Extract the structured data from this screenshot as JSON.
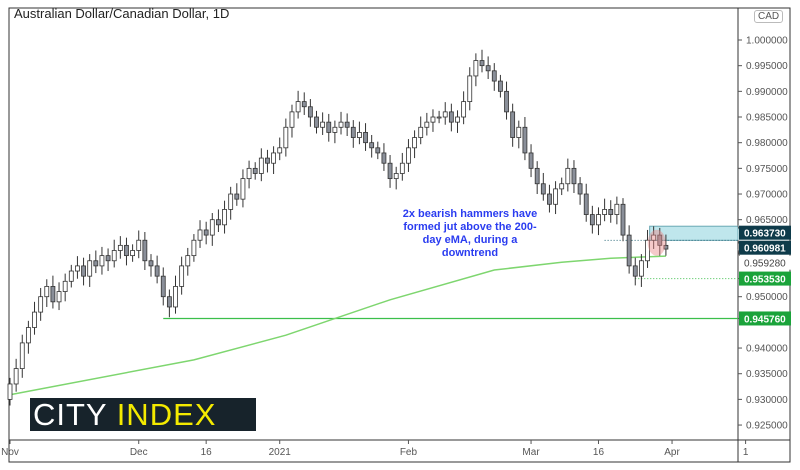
{
  "title": "Australian Dollar/Canadian Dollar, 1D",
  "currency_badge": "CAD",
  "annotation": "2x bearish hammers have formed jut above the 200-day eMA, during a downtrend",
  "logo": {
    "part1": "CITY",
    "part2": "INDEX"
  },
  "colors": {
    "up": "#ffffff",
    "down": "#8a8f99",
    "wick": "#333333",
    "ema": "#7ed66f",
    "support": "#3bbf4a",
    "zone": "#bfe6ec",
    "dark_label": "#0e3b4a",
    "green_label": "#1aa33a",
    "annotation": "#2a3cf0",
    "highlight": "#e88a8a"
  },
  "chart_data": {
    "type": "candlestick",
    "title": "Australian Dollar/Canadian Dollar, 1D",
    "ylim": [
      0.922,
      1.006
    ],
    "y_ticks": [
      "1.000000",
      "0.995000",
      "0.990000",
      "0.985000",
      "0.980000",
      "0.975000",
      "0.970000",
      "0.965000",
      "0.950000",
      "0.940000",
      "0.935000",
      "0.930000",
      "0.925000"
    ],
    "x_ticks": [
      {
        "label": "Nov",
        "index": 0
      },
      {
        "label": "Dec",
        "index": 21
      },
      {
        "label": "16",
        "index": 32
      },
      {
        "label": "2021",
        "index": 44
      },
      {
        "label": "Feb",
        "index": 65
      },
      {
        "label": "Mar",
        "index": 85
      },
      {
        "label": "16",
        "index": 96
      },
      {
        "label": "Apr",
        "index": 108
      },
      {
        "label": "1",
        "index": 120
      }
    ],
    "first_date": "2020-11-02",
    "close": [
      0.933,
      0.936,
      0.941,
      0.944,
      0.947,
      0.95,
      0.952,
      0.949,
      0.951,
      0.953,
      0.955,
      0.956,
      0.954,
      0.957,
      0.956,
      0.958,
      0.957,
      0.959,
      0.96,
      0.958,
      0.959,
      0.961,
      0.957,
      0.956,
      0.954,
      0.95,
      0.948,
      0.952,
      0.956,
      0.958,
      0.961,
      0.963,
      0.962,
      0.965,
      0.964,
      0.967,
      0.97,
      0.969,
      0.973,
      0.975,
      0.974,
      0.977,
      0.976,
      0.978,
      0.979,
      0.983,
      0.986,
      0.988,
      0.987,
      0.985,
      0.983,
      0.984,
      0.982,
      0.983,
      0.984,
      0.983,
      0.981,
      0.982,
      0.98,
      0.979,
      0.978,
      0.976,
      0.973,
      0.974,
      0.976,
      0.979,
      0.981,
      0.983,
      0.984,
      0.985,
      0.985,
      0.986,
      0.984,
      0.985,
      0.988,
      0.993,
      0.996,
      0.995,
      0.994,
      0.992,
      0.99,
      0.986,
      0.981,
      0.983,
      0.978,
      0.975,
      0.972,
      0.97,
      0.968,
      0.971,
      0.972,
      0.975,
      0.972,
      0.97,
      0.966,
      0.964,
      0.966,
      0.967,
      0.966,
      0.968,
      0.962,
      0.956,
      0.954,
      0.957,
      0.961,
      0.962,
      0.96,
      0.95928
    ],
    "ema200": [
      [
        0,
        0.9309
      ],
      [
        30,
        0.9377
      ],
      [
        45,
        0.9425
      ],
      [
        62,
        0.9494
      ],
      [
        79,
        0.9552
      ],
      [
        90,
        0.9567
      ],
      [
        98,
        0.9575
      ],
      [
        107,
        0.9579
      ]
    ],
    "levels": [
      {
        "label": "0.963730",
        "value": 0.96373,
        "style": "zone-top",
        "start_index": 105
      },
      {
        "label": "0.960981",
        "value": 0.960981,
        "style": "dotted",
        "start_index": 97
      },
      {
        "label": "0.959280",
        "value": 0.95928,
        "style": "last-price",
        "start_index": 107
      },
      {
        "label": "0.953530",
        "value": 0.95353,
        "style": "green-dotted",
        "start_index": 102
      },
      {
        "label": "0.945760",
        "value": 0.94576,
        "style": "green-solid",
        "start_index": 25
      }
    ]
  }
}
